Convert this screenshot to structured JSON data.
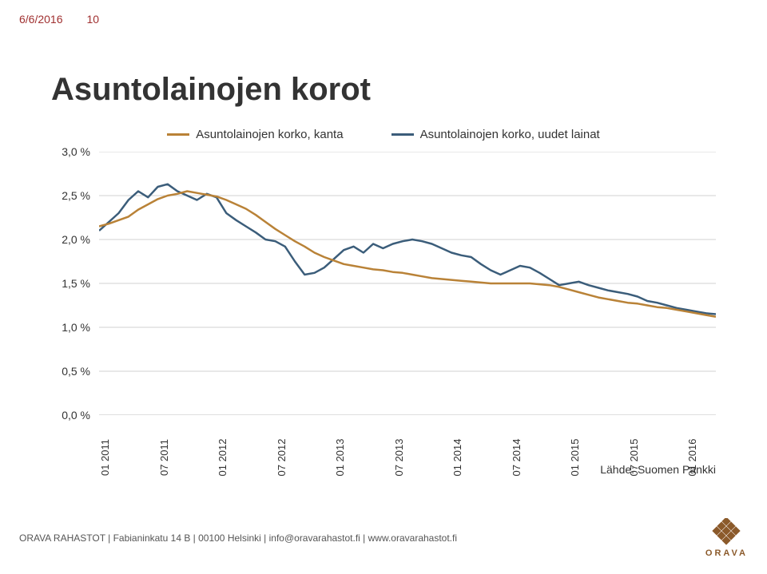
{
  "header": {
    "date": "6/6/2016",
    "slide_number": "10"
  },
  "title": "Asuntolainojen korot",
  "legend": {
    "series1": {
      "label": "Asuntolainojen korko, kanta",
      "color": "#b98237"
    },
    "series2": {
      "label": "Asuntolainojen korko, uudet lainat",
      "color": "#3b5d7a"
    }
  },
  "chart": {
    "type": "line",
    "ylim": [
      0.0,
      3.0
    ],
    "ytick_step": 0.5,
    "yticks": [
      0.0,
      0.5,
      1.0,
      1.5,
      2.0,
      2.5,
      3.0
    ],
    "ytick_labels": [
      "0,0 %",
      "0,5 %",
      "1,0 %",
      "1,5 %",
      "2,0 %",
      "2,5 %",
      "3,0 %"
    ],
    "xticks": [
      "01 2011",
      "07 2011",
      "01 2012",
      "07 2012",
      "01 2013",
      "07 2013",
      "01 2014",
      "07 2014",
      "01 2015",
      "07 2015",
      "01 2016"
    ],
    "xtick_indices": [
      0,
      6,
      12,
      18,
      24,
      30,
      36,
      42,
      48,
      54,
      60
    ],
    "n_points": 64,
    "background_color": "#ffffff",
    "grid_color": "#d0d0d0",
    "axis_color": "#bfbfbf",
    "line_width": 2.5,
    "series": {
      "kanta": {
        "color": "#b98237",
        "values": [
          2.15,
          2.18,
          2.22,
          2.26,
          2.34,
          2.4,
          2.46,
          2.5,
          2.52,
          2.55,
          2.53,
          2.51,
          2.49,
          2.45,
          2.4,
          2.35,
          2.28,
          2.2,
          2.12,
          2.05,
          1.98,
          1.92,
          1.85,
          1.8,
          1.76,
          1.72,
          1.7,
          1.68,
          1.66,
          1.65,
          1.63,
          1.62,
          1.6,
          1.58,
          1.56,
          1.55,
          1.54,
          1.53,
          1.52,
          1.51,
          1.5,
          1.5,
          1.5,
          1.5,
          1.5,
          1.49,
          1.48,
          1.46,
          1.43,
          1.4,
          1.37,
          1.34,
          1.32,
          1.3,
          1.28,
          1.27,
          1.25,
          1.23,
          1.22,
          1.2,
          1.18,
          1.16,
          1.14,
          1.12
        ]
      },
      "uudet": {
        "color": "#3b5d7a",
        "values": [
          2.1,
          2.2,
          2.3,
          2.45,
          2.55,
          2.48,
          2.6,
          2.63,
          2.55,
          2.5,
          2.45,
          2.52,
          2.48,
          2.3,
          2.22,
          2.15,
          2.08,
          2.0,
          1.98,
          1.92,
          1.75,
          1.6,
          1.62,
          1.68,
          1.78,
          1.88,
          1.92,
          1.85,
          1.95,
          1.9,
          1.95,
          1.98,
          2.0,
          1.98,
          1.95,
          1.9,
          1.85,
          1.82,
          1.8,
          1.72,
          1.65,
          1.6,
          1.65,
          1.7,
          1.68,
          1.62,
          1.55,
          1.48,
          1.5,
          1.52,
          1.48,
          1.45,
          1.42,
          1.4,
          1.38,
          1.35,
          1.3,
          1.28,
          1.25,
          1.22,
          1.2,
          1.18,
          1.16,
          1.15
        ]
      }
    }
  },
  "source": "Lähde: Suomen Pankki",
  "footer": {
    "text": "ORAVA RAHASTOT | Fabianinkatu 14 B | 00100 Helsinki | info@oravarahastot.fi | www.oravarahastot.fi",
    "logo_word": "ORAVA",
    "logo_color": "#8b5a2b"
  }
}
